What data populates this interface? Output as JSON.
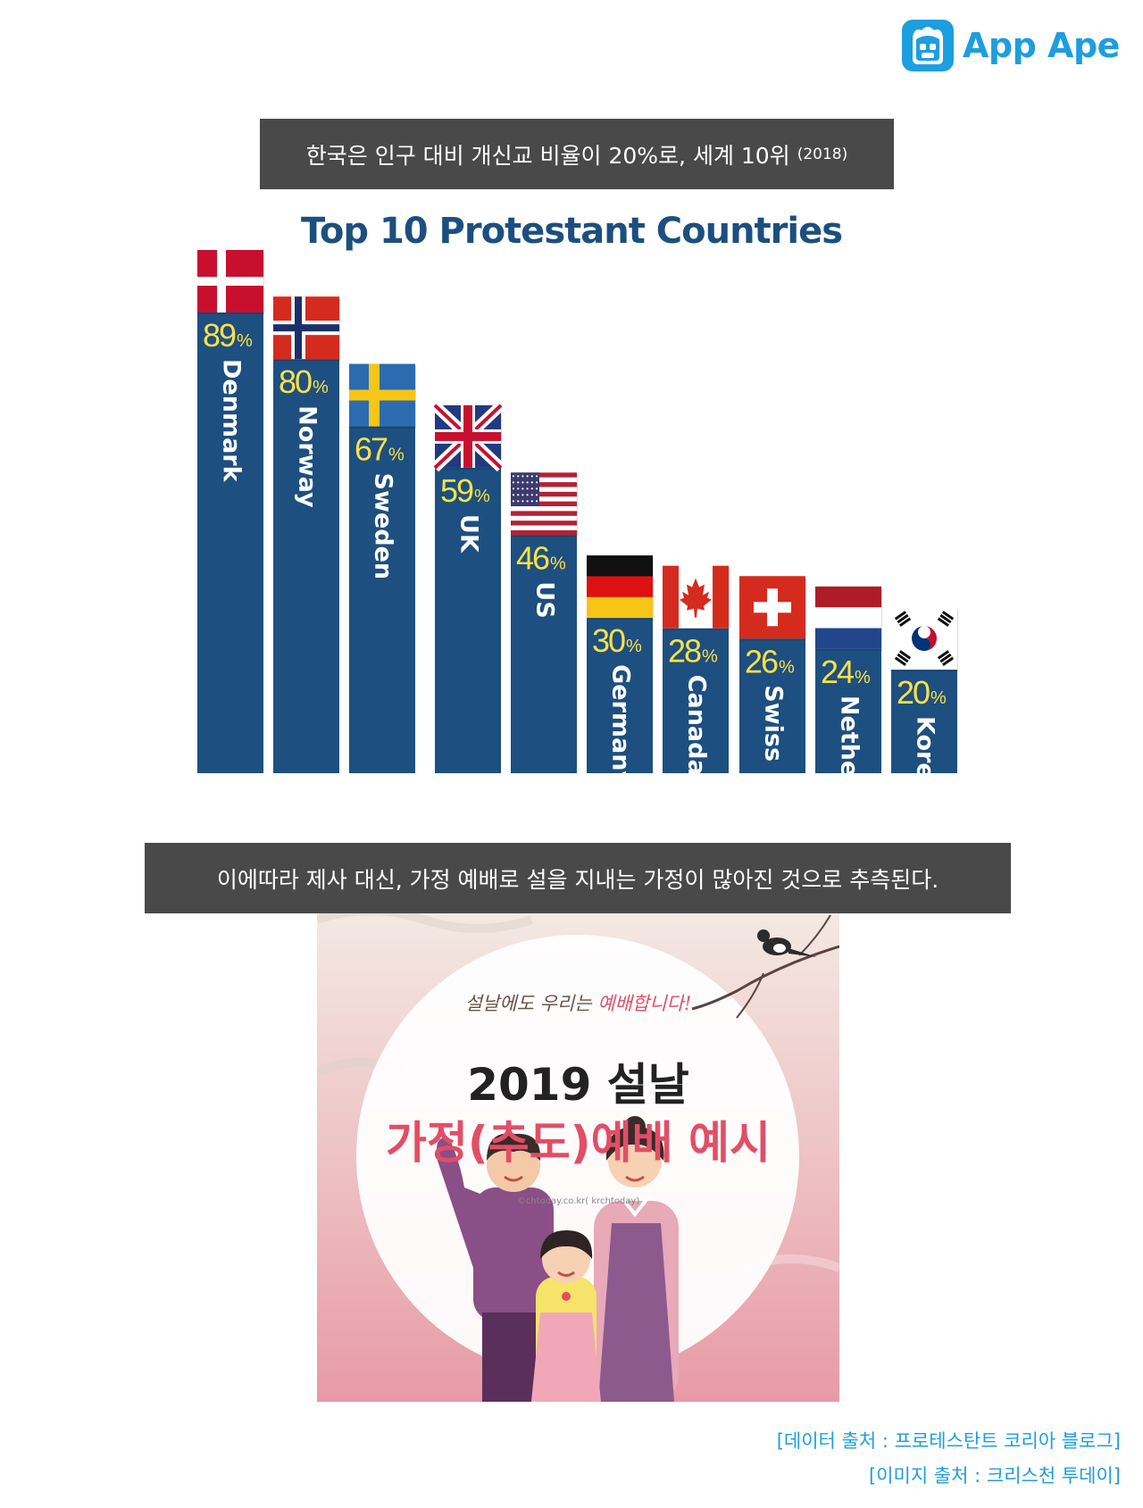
{
  "logo": {
    "name": "App Ape",
    "color": "#1d9ee0"
  },
  "caption_top": {
    "text": "한국은 인구 대비 개신교 비율이 20%로, 세계 10위",
    "year": "(2018)"
  },
  "caption_bottom": {
    "text": "이에따라 제사 대신, 가정 예배로 설을 지내는 가정이 많아진 것으로 추측된다."
  },
  "chart_data": {
    "type": "bar",
    "title": "Top 10 Protestant Countries",
    "xlabel": "",
    "ylabel": "",
    "unit": "%",
    "ylim": [
      0,
      100
    ],
    "grid": false,
    "legend": "none",
    "categories": [
      "Denmark",
      "Norway",
      "Sweden",
      "UK",
      "US",
      "Germany",
      "Canada",
      "Swiss",
      "Netherlands",
      "Korea"
    ],
    "values": [
      89,
      80,
      67,
      59,
      46,
      30,
      28,
      26,
      24,
      20
    ],
    "bar_color": "#1d4f80",
    "value_label_color": "#fde047",
    "flags": [
      "denmark-flag-icon",
      "norway-flag-icon",
      "sweden-flag-icon",
      "uk-flag-icon",
      "us-flag-icon",
      "germany-flag-icon",
      "canada-flag-icon",
      "swiss-flag-icon",
      "netherlands-flag-icon",
      "korea-flag-icon"
    ]
  },
  "poster": {
    "tagline_pre": "설날에도 우리는 ",
    "tagline_highlight": "예배합니다!",
    "title_line1": "2019 설날",
    "title_line2": "가정(추도)예배 예시",
    "credit": "©chtoday.co.kr( krchtoday)"
  },
  "sources": {
    "data": "[데이터 출처 : 프로테스탄트 코리아 블로그]",
    "image": "[이미지 출처 : 크리스천 투데이]"
  }
}
